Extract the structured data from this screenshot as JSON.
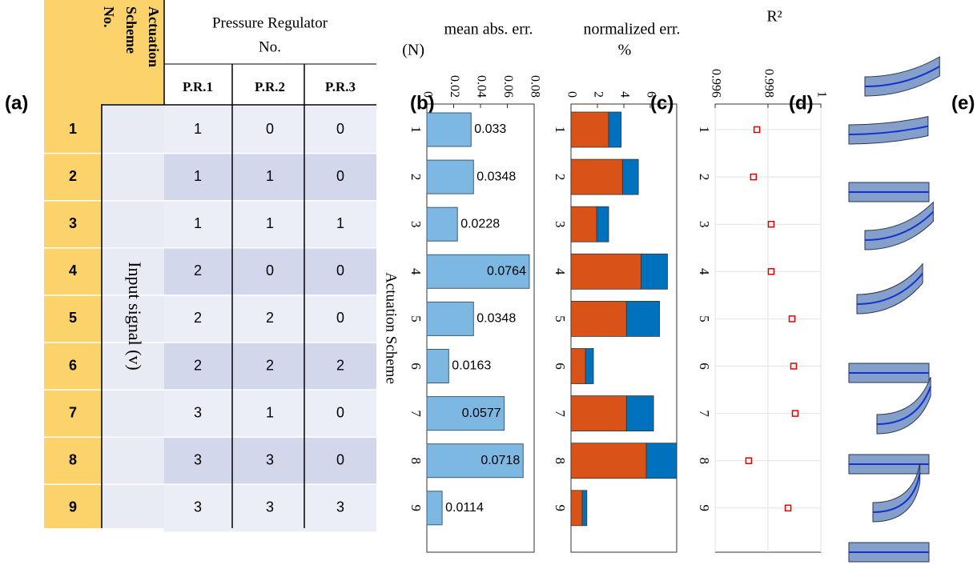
{
  "table": {
    "label": "(a)",
    "header": {
      "scheme": [
        "Actuation",
        "Scheme",
        "No."
      ],
      "group": [
        "Pressure Regulator",
        "No."
      ],
      "columns": [
        "P.R.1",
        "P.R.2",
        "P.R.3"
      ]
    },
    "merged": "Input signal (v)",
    "rows": [
      [
        "1",
        1,
        0,
        0
      ],
      [
        "2",
        1,
        1,
        0
      ],
      [
        "3",
        1,
        1,
        1
      ],
      [
        "4",
        2,
        0,
        0
      ],
      [
        "5",
        2,
        2,
        0
      ],
      [
        "6",
        2,
        2,
        2
      ],
      [
        "7",
        3,
        1,
        0
      ],
      [
        "8",
        3,
        3,
        0
      ],
      [
        "9",
        3,
        3,
        3
      ]
    ]
  },
  "chart_data": [
    {
      "type": "bar",
      "label": "(b)",
      "xlabel": "mean abs. err.",
      "unit": "(N)",
      "ylabel": "Actuation Scheme",
      "categories": [
        "1",
        "2",
        "3",
        "4",
        "5",
        "6",
        "7",
        "8",
        "9"
      ],
      "values": [
        0.033,
        0.0348,
        0.0228,
        0.0764,
        0.0348,
        0.0163,
        0.0577,
        0.0718,
        0.0114
      ],
      "color": "#7db8e2",
      "xlim": [
        0,
        0.08
      ],
      "xticks": [
        0,
        0.02,
        0.04,
        0.06,
        0.08
      ]
    },
    {
      "type": "stacked-bar",
      "label": "(c)",
      "xlabel": "normalized err.",
      "unit": "%",
      "categories": [
        "1",
        "2",
        "3",
        "4",
        "5",
        "6",
        "7",
        "8",
        "9"
      ],
      "series": [
        {
          "color": "#d95319",
          "values": [
            2.85,
            3.9,
            1.95,
            5.3,
            4.2,
            1.1,
            4.2,
            5.7,
            0.85
          ]
        },
        {
          "color": "#0072bd",
          "values": [
            0.95,
            1.2,
            0.9,
            2.0,
            2.5,
            0.6,
            2.05,
            2.3,
            0.35
          ]
        }
      ],
      "xlim": [
        0,
        8
      ],
      "xticks": [
        0,
        2,
        4,
        6
      ]
    },
    {
      "type": "scatter",
      "label": "(d)",
      "xlabel": "R²",
      "categories": [
        "1",
        "2",
        "3",
        "4",
        "5",
        "6",
        "7",
        "8",
        "9"
      ],
      "values": [
        0.99758,
        0.99745,
        0.99812,
        0.99812,
        0.99891,
        0.99897,
        0.99903,
        0.99727,
        0.99876
      ],
      "color": "#e00000",
      "xlim": [
        0.996,
        1
      ],
      "xticks": [
        0.996,
        0.998,
        1
      ],
      "grid": true
    }
  ],
  "images": {
    "label": "(e)"
  }
}
